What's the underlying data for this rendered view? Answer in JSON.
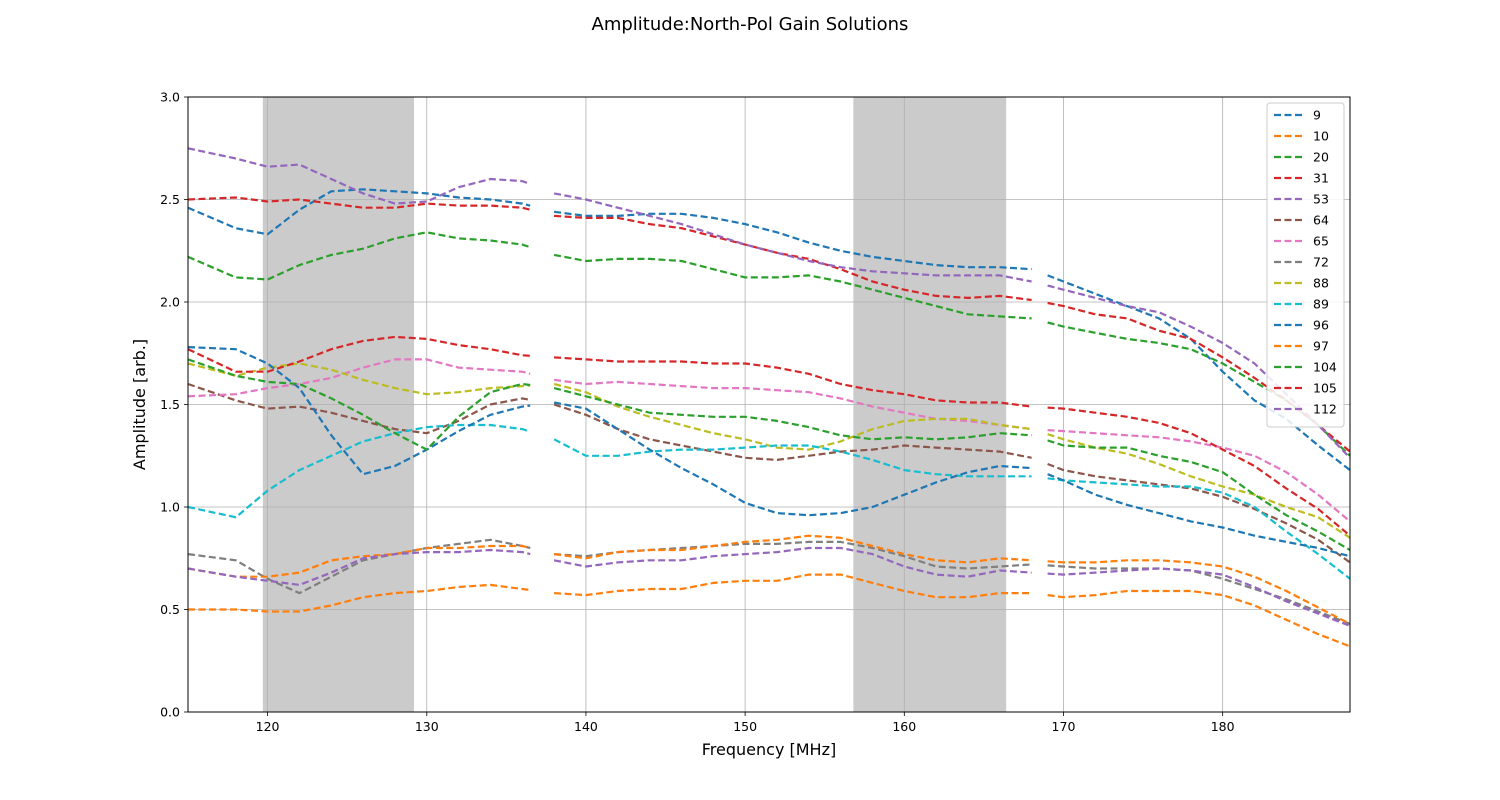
{
  "chart_data": {
    "type": "line",
    "title": "Amplitude:North-Pol Gain Solutions",
    "xlabel": "Frequency [MHz]",
    "ylabel": "Amplitude [arb.]",
    "xlim": [
      115,
      188
    ],
    "ylim": [
      0.0,
      3.0
    ],
    "xticks": [
      "120",
      "130",
      "140",
      "150",
      "160",
      "170",
      "180"
    ],
    "yticks": [
      "0.0",
      "0.5",
      "1.0",
      "1.5",
      "2.0",
      "2.5",
      "3.0"
    ],
    "grid": true,
    "legend_position": "top-right",
    "line_style": "dashed",
    "shaded_bands": [
      [
        119.7,
        129.2
      ],
      [
        156.8,
        166.4
      ]
    ],
    "flagged_gaps": [
      [
        136.5,
        138.0
      ],
      [
        168.0,
        169.0
      ]
    ],
    "x": [
      115,
      118,
      120,
      122,
      124,
      126,
      128,
      130,
      132,
      134,
      136,
      138,
      140,
      142,
      144,
      146,
      148,
      150,
      152,
      154,
      156,
      158,
      160,
      162,
      164,
      166,
      168,
      170,
      172,
      174,
      176,
      178,
      180,
      182,
      184,
      186,
      188
    ],
    "series": [
      {
        "name": "9",
        "color": "#1f77b4",
        "values": [
          2.46,
          2.36,
          2.33,
          2.45,
          2.54,
          2.55,
          2.54,
          2.53,
          2.51,
          2.5,
          2.48,
          2.44,
          2.42,
          2.42,
          2.43,
          2.43,
          2.41,
          2.38,
          2.34,
          2.29,
          2.25,
          2.22,
          2.2,
          2.18,
          2.17,
          2.17,
          2.16,
          2.1,
          2.04,
          1.98,
          1.92,
          1.82,
          1.66,
          1.52,
          1.43,
          1.3,
          1.18
        ]
      },
      {
        "name": "10",
        "color": "#ff7f0e",
        "values": [
          0.5,
          0.5,
          0.49,
          0.49,
          0.52,
          0.56,
          0.58,
          0.59,
          0.61,
          0.62,
          0.6,
          0.58,
          0.57,
          0.59,
          0.6,
          0.6,
          0.63,
          0.64,
          0.64,
          0.67,
          0.67,
          0.63,
          0.59,
          0.56,
          0.56,
          0.58,
          0.58,
          0.56,
          0.57,
          0.59,
          0.59,
          0.59,
          0.57,
          0.52,
          0.45,
          0.38,
          0.32
        ]
      },
      {
        "name": "20",
        "color": "#2ca02c",
        "values": [
          2.22,
          2.12,
          2.11,
          2.18,
          2.23,
          2.26,
          2.31,
          2.34,
          2.31,
          2.3,
          2.28,
          2.23,
          2.2,
          2.21,
          2.21,
          2.2,
          2.16,
          2.12,
          2.12,
          2.13,
          2.1,
          2.06,
          2.02,
          1.98,
          1.94,
          1.93,
          1.92,
          1.88,
          1.85,
          1.82,
          1.8,
          1.77,
          1.7,
          1.61,
          1.52,
          1.4,
          1.25
        ]
      },
      {
        "name": "31",
        "color": "#d62728",
        "values": [
          2.5,
          2.51,
          2.49,
          2.5,
          2.48,
          2.46,
          2.46,
          2.48,
          2.47,
          2.47,
          2.46,
          2.42,
          2.41,
          2.41,
          2.38,
          2.36,
          2.32,
          2.28,
          2.24,
          2.21,
          2.16,
          2.1,
          2.06,
          2.03,
          2.02,
          2.03,
          2.01,
          1.98,
          1.94,
          1.92,
          1.86,
          1.82,
          1.73,
          1.63,
          1.52,
          1.4,
          1.27
        ]
      },
      {
        "name": "53",
        "color": "#9467bd",
        "values": [
          2.75,
          2.7,
          2.66,
          2.67,
          2.6,
          2.53,
          2.48,
          2.49,
          2.56,
          2.6,
          2.59,
          2.53,
          2.5,
          2.46,
          2.42,
          2.38,
          2.33,
          2.28,
          2.24,
          2.2,
          2.17,
          2.15,
          2.14,
          2.13,
          2.13,
          2.13,
          2.1,
          2.06,
          2.02,
          1.98,
          1.95,
          1.88,
          1.8,
          1.7,
          1.55,
          1.4,
          1.24
        ]
      },
      {
        "name": "64",
        "color": "#8c564b",
        "values": [
          1.6,
          1.52,
          1.48,
          1.49,
          1.46,
          1.42,
          1.38,
          1.36,
          1.42,
          1.5,
          1.53,
          1.5,
          1.45,
          1.38,
          1.33,
          1.3,
          1.27,
          1.24,
          1.23,
          1.25,
          1.27,
          1.28,
          1.3,
          1.29,
          1.28,
          1.27,
          1.24,
          1.18,
          1.15,
          1.13,
          1.11,
          1.09,
          1.05,
          0.99,
          0.92,
          0.84,
          0.73
        ]
      },
      {
        "name": "65",
        "color": "#e377c2",
        "values": [
          1.54,
          1.55,
          1.58,
          1.6,
          1.63,
          1.68,
          1.72,
          1.72,
          1.68,
          1.67,
          1.66,
          1.62,
          1.6,
          1.61,
          1.6,
          1.59,
          1.58,
          1.58,
          1.57,
          1.56,
          1.53,
          1.49,
          1.46,
          1.43,
          1.42,
          1.4,
          1.38,
          1.37,
          1.36,
          1.35,
          1.34,
          1.32,
          1.29,
          1.25,
          1.17,
          1.06,
          0.93
        ]
      },
      {
        "name": "72",
        "color": "#7f7f7f",
        "values": [
          0.77,
          0.74,
          0.65,
          0.58,
          0.66,
          0.74,
          0.77,
          0.8,
          0.82,
          0.84,
          0.81,
          0.77,
          0.76,
          0.78,
          0.79,
          0.8,
          0.81,
          0.82,
          0.82,
          0.83,
          0.83,
          0.8,
          0.76,
          0.71,
          0.7,
          0.71,
          0.72,
          0.71,
          0.7,
          0.7,
          0.7,
          0.69,
          0.65,
          0.6,
          0.55,
          0.49,
          0.43
        ]
      },
      {
        "name": "88",
        "color": "#bcbd22",
        "values": [
          1.7,
          1.64,
          1.68,
          1.7,
          1.67,
          1.62,
          1.58,
          1.55,
          1.56,
          1.58,
          1.59,
          1.6,
          1.56,
          1.49,
          1.44,
          1.4,
          1.36,
          1.33,
          1.29,
          1.28,
          1.32,
          1.38,
          1.42,
          1.43,
          1.43,
          1.4,
          1.38,
          1.33,
          1.29,
          1.26,
          1.21,
          1.15,
          1.1,
          1.06,
          1.0,
          0.95,
          0.85
        ]
      },
      {
        "name": "89",
        "color": "#17becf",
        "values": [
          1.0,
          0.95,
          1.08,
          1.18,
          1.25,
          1.32,
          1.36,
          1.39,
          1.4,
          1.4,
          1.38,
          1.33,
          1.25,
          1.25,
          1.27,
          1.28,
          1.28,
          1.29,
          1.3,
          1.3,
          1.27,
          1.23,
          1.18,
          1.16,
          1.15,
          1.15,
          1.15,
          1.13,
          1.12,
          1.11,
          1.1,
          1.1,
          1.07,
          1.0,
          0.88,
          0.77,
          0.65
        ]
      },
      {
        "name": "96",
        "color": "#1f77b4",
        "values": [
          1.78,
          1.77,
          1.7,
          1.58,
          1.35,
          1.16,
          1.2,
          1.28,
          1.37,
          1.45,
          1.49,
          1.51,
          1.48,
          1.38,
          1.28,
          1.19,
          1.11,
          1.02,
          0.97,
          0.96,
          0.97,
          1.0,
          1.06,
          1.12,
          1.17,
          1.2,
          1.19,
          1.13,
          1.06,
          1.01,
          0.97,
          0.93,
          0.9,
          0.86,
          0.83,
          0.8,
          0.76
        ]
      },
      {
        "name": "97",
        "color": "#ff7f0e",
        "values": [
          0.7,
          0.66,
          0.66,
          0.68,
          0.74,
          0.76,
          0.77,
          0.8,
          0.8,
          0.81,
          0.81,
          0.77,
          0.75,
          0.78,
          0.79,
          0.79,
          0.81,
          0.83,
          0.84,
          0.86,
          0.85,
          0.81,
          0.77,
          0.74,
          0.73,
          0.75,
          0.74,
          0.73,
          0.73,
          0.74,
          0.74,
          0.73,
          0.71,
          0.66,
          0.59,
          0.51,
          0.43
        ]
      },
      {
        "name": "104",
        "color": "#2ca02c",
        "values": [
          1.72,
          1.64,
          1.61,
          1.6,
          1.53,
          1.45,
          1.36,
          1.28,
          1.44,
          1.56,
          1.6,
          1.58,
          1.54,
          1.5,
          1.46,
          1.45,
          1.44,
          1.44,
          1.42,
          1.39,
          1.35,
          1.33,
          1.34,
          1.33,
          1.34,
          1.36,
          1.35,
          1.3,
          1.29,
          1.29,
          1.25,
          1.22,
          1.17,
          1.06,
          0.96,
          0.88,
          0.79
        ]
      },
      {
        "name": "105",
        "color": "#d62728",
        "values": [
          1.77,
          1.66,
          1.66,
          1.71,
          1.77,
          1.81,
          1.83,
          1.82,
          1.79,
          1.77,
          1.74,
          1.73,
          1.72,
          1.71,
          1.71,
          1.71,
          1.7,
          1.7,
          1.68,
          1.65,
          1.6,
          1.57,
          1.55,
          1.52,
          1.51,
          1.51,
          1.49,
          1.48,
          1.46,
          1.44,
          1.41,
          1.36,
          1.28,
          1.2,
          1.09,
          0.99,
          0.86
        ]
      },
      {
        "name": "112",
        "color": "#9467bd",
        "values": [
          0.7,
          0.66,
          0.64,
          0.62,
          0.68,
          0.75,
          0.77,
          0.78,
          0.78,
          0.79,
          0.78,
          0.74,
          0.71,
          0.73,
          0.74,
          0.74,
          0.76,
          0.77,
          0.78,
          0.8,
          0.8,
          0.77,
          0.71,
          0.67,
          0.66,
          0.69,
          0.68,
          0.67,
          0.68,
          0.69,
          0.7,
          0.69,
          0.67,
          0.61,
          0.54,
          0.48,
          0.42
        ]
      }
    ]
  }
}
